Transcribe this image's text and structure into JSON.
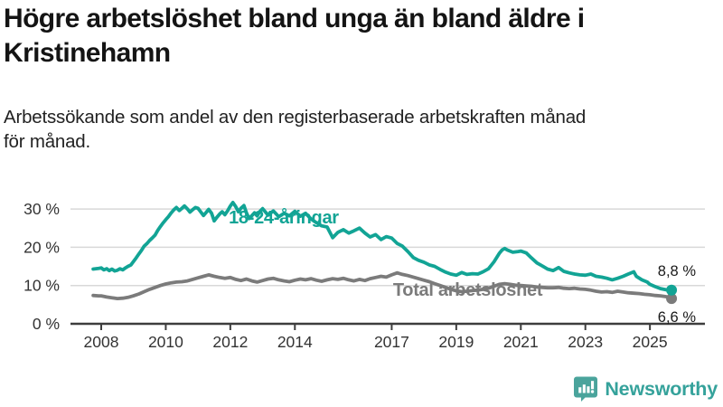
{
  "header": {
    "title_lines": [
      "Högre arbetslöshet bland unga än bland äldre i",
      "Kristinehamn"
    ],
    "subtitle_lines": [
      "Arbetssökande som andel av den registerbaserade arbetskraften månad",
      "för månad."
    ]
  },
  "chart_data": {
    "type": "line",
    "unit": "%",
    "grid": "horizontal",
    "xlim": [
      2007.05,
      2026.1
    ],
    "ylim": [
      0,
      33
    ],
    "x_ticks": [
      "2008",
      "2010",
      "2012",
      "2014",
      "2017",
      "2019",
      "2021",
      "2023",
      "2025"
    ],
    "x_tick_years": [
      2008,
      2010,
      2012,
      2014,
      2017,
      2019,
      2021,
      2023,
      2025
    ],
    "y_ticks": [
      0,
      10,
      20,
      30
    ],
    "colors": {
      "youth": "#12a495",
      "total": "#7b7b7b",
      "grid": "#d8d8d8",
      "axis": "#3d3d3d",
      "tick_label": "#333333",
      "end_label": "#1a1a1a"
    },
    "series": [
      {
        "name": "Total arbetslöshet",
        "color": "#7b7b7b",
        "end_label": "6,6 %",
        "end_value": 6.6,
        "end_label_dy": 26,
        "points": [
          [
            2007.75,
            7.4
          ],
          [
            2007.92,
            7.3
          ],
          [
            2008.0,
            7.3
          ],
          [
            2008.17,
            7.0
          ],
          [
            2008.33,
            6.8
          ],
          [
            2008.5,
            6.6
          ],
          [
            2008.67,
            6.7
          ],
          [
            2008.83,
            6.9
          ],
          [
            2009.0,
            7.3
          ],
          [
            2009.17,
            7.8
          ],
          [
            2009.33,
            8.4
          ],
          [
            2009.5,
            9.0
          ],
          [
            2009.67,
            9.5
          ],
          [
            2009.83,
            10.0
          ],
          [
            2010.0,
            10.4
          ],
          [
            2010.17,
            10.7
          ],
          [
            2010.33,
            10.9
          ],
          [
            2010.5,
            11.0
          ],
          [
            2010.67,
            11.2
          ],
          [
            2010.83,
            11.6
          ],
          [
            2011.0,
            12.0
          ],
          [
            2011.17,
            12.4
          ],
          [
            2011.33,
            12.8
          ],
          [
            2011.5,
            12.4
          ],
          [
            2011.67,
            12.1
          ],
          [
            2011.83,
            11.9
          ],
          [
            2012.0,
            12.1
          ],
          [
            2012.17,
            11.6
          ],
          [
            2012.33,
            11.3
          ],
          [
            2012.5,
            11.7
          ],
          [
            2012.67,
            11.2
          ],
          [
            2012.83,
            10.9
          ],
          [
            2013.0,
            11.3
          ],
          [
            2013.17,
            11.7
          ],
          [
            2013.33,
            11.9
          ],
          [
            2013.5,
            11.5
          ],
          [
            2013.67,
            11.2
          ],
          [
            2013.83,
            11.0
          ],
          [
            2014.0,
            11.4
          ],
          [
            2014.17,
            11.7
          ],
          [
            2014.33,
            11.5
          ],
          [
            2014.5,
            11.8
          ],
          [
            2014.67,
            11.4
          ],
          [
            2014.83,
            11.1
          ],
          [
            2015.0,
            11.5
          ],
          [
            2015.17,
            11.8
          ],
          [
            2015.33,
            11.6
          ],
          [
            2015.5,
            11.9
          ],
          [
            2015.67,
            11.5
          ],
          [
            2015.83,
            11.2
          ],
          [
            2016.0,
            11.6
          ],
          [
            2016.17,
            11.3
          ],
          [
            2016.33,
            11.8
          ],
          [
            2016.5,
            12.1
          ],
          [
            2016.67,
            12.4
          ],
          [
            2016.83,
            12.2
          ],
          [
            2017.0,
            12.8
          ],
          [
            2017.17,
            13.3
          ],
          [
            2017.33,
            12.9
          ],
          [
            2017.5,
            12.6
          ],
          [
            2017.67,
            12.2
          ],
          [
            2017.83,
            11.8
          ],
          [
            2018.0,
            11.4
          ],
          [
            2018.17,
            11.0
          ],
          [
            2018.33,
            10.5
          ],
          [
            2018.5,
            10.0
          ],
          [
            2018.67,
            9.5
          ],
          [
            2018.83,
            9.0
          ],
          [
            2019.0,
            8.6
          ],
          [
            2019.17,
            8.4
          ],
          [
            2019.33,
            8.5
          ],
          [
            2019.5,
            8.7
          ],
          [
            2019.67,
            8.8
          ],
          [
            2019.83,
            9.0
          ],
          [
            2020.0,
            9.3
          ],
          [
            2020.17,
            9.8
          ],
          [
            2020.33,
            10.3
          ],
          [
            2020.5,
            10.5
          ],
          [
            2020.67,
            10.3
          ],
          [
            2020.83,
            10.1
          ],
          [
            2021.0,
            10.0
          ],
          [
            2021.17,
            9.9
          ],
          [
            2021.33,
            9.8
          ],
          [
            2021.5,
            9.6
          ],
          [
            2021.67,
            9.5
          ],
          [
            2021.83,
            9.4
          ],
          [
            2022.0,
            9.4
          ],
          [
            2022.17,
            9.5
          ],
          [
            2022.33,
            9.3
          ],
          [
            2022.5,
            9.2
          ],
          [
            2022.67,
            9.3
          ],
          [
            2022.83,
            9.1
          ],
          [
            2023.0,
            9.0
          ],
          [
            2023.17,
            8.8
          ],
          [
            2023.33,
            8.5
          ],
          [
            2023.5,
            8.3
          ],
          [
            2023.67,
            8.4
          ],
          [
            2023.83,
            8.2
          ],
          [
            2024.0,
            8.5
          ],
          [
            2024.17,
            8.3
          ],
          [
            2024.33,
            8.1
          ],
          [
            2024.5,
            8.0
          ],
          [
            2024.67,
            7.9
          ],
          [
            2024.83,
            7.7
          ],
          [
            2025.0,
            7.6
          ],
          [
            2025.17,
            7.4
          ],
          [
            2025.33,
            7.3
          ],
          [
            2025.5,
            7.1
          ],
          [
            2025.67,
            6.6
          ]
        ]
      },
      {
        "name": "18-24-åringar",
        "color": "#12a495",
        "end_label": "8,8 %",
        "end_value": 8.8,
        "end_label_dy": -16,
        "points": [
          [
            2007.75,
            14.3
          ],
          [
            2007.92,
            14.5
          ],
          [
            2008.0,
            14.6
          ],
          [
            2008.08,
            14.1
          ],
          [
            2008.17,
            14.4
          ],
          [
            2008.25,
            13.9
          ],
          [
            2008.33,
            14.3
          ],
          [
            2008.42,
            13.8
          ],
          [
            2008.5,
            14.0
          ],
          [
            2008.58,
            14.4
          ],
          [
            2008.67,
            14.1
          ],
          [
            2008.75,
            14.6
          ],
          [
            2008.83,
            15.0
          ],
          [
            2008.92,
            15.4
          ],
          [
            2009.0,
            16.3
          ],
          [
            2009.08,
            17.2
          ],
          [
            2009.17,
            18.3
          ],
          [
            2009.25,
            19.2
          ],
          [
            2009.33,
            20.3
          ],
          [
            2009.42,
            21.0
          ],
          [
            2009.5,
            21.8
          ],
          [
            2009.58,
            22.4
          ],
          [
            2009.67,
            23.2
          ],
          [
            2009.75,
            24.4
          ],
          [
            2009.83,
            25.4
          ],
          [
            2009.92,
            26.4
          ],
          [
            2010.0,
            27.2
          ],
          [
            2010.08,
            28.0
          ],
          [
            2010.17,
            29.0
          ],
          [
            2010.25,
            29.8
          ],
          [
            2010.33,
            30.4
          ],
          [
            2010.42,
            29.6
          ],
          [
            2010.5,
            30.2
          ],
          [
            2010.58,
            30.8
          ],
          [
            2010.67,
            30.0
          ],
          [
            2010.75,
            29.2
          ],
          [
            2010.83,
            29.8
          ],
          [
            2010.92,
            30.4
          ],
          [
            2011.0,
            30.2
          ],
          [
            2011.08,
            29.3
          ],
          [
            2011.17,
            28.3
          ],
          [
            2011.25,
            29.1
          ],
          [
            2011.33,
            29.9
          ],
          [
            2011.42,
            28.9
          ],
          [
            2011.5,
            26.9
          ],
          [
            2011.58,
            27.8
          ],
          [
            2011.67,
            28.7
          ],
          [
            2011.75,
            29.3
          ],
          [
            2011.83,
            28.5
          ],
          [
            2011.92,
            29.6
          ],
          [
            2012.0,
            30.8
          ],
          [
            2012.08,
            31.7
          ],
          [
            2012.17,
            30.6
          ],
          [
            2012.25,
            29.3
          ],
          [
            2012.33,
            30.2
          ],
          [
            2012.42,
            30.9
          ],
          [
            2012.5,
            29.0
          ],
          [
            2012.58,
            27.5
          ],
          [
            2012.67,
            28.3
          ],
          [
            2012.75,
            29.0
          ],
          [
            2012.83,
            28.2
          ],
          [
            2012.92,
            29.4
          ],
          [
            2013.0,
            30.1
          ],
          [
            2013.17,
            28.4
          ],
          [
            2013.33,
            29.5
          ],
          [
            2013.5,
            28.0
          ],
          [
            2013.67,
            28.9
          ],
          [
            2013.83,
            28.2
          ],
          [
            2014.0,
            29.4
          ],
          [
            2014.17,
            28.1
          ],
          [
            2014.33,
            28.9
          ],
          [
            2014.5,
            27.4
          ],
          [
            2014.67,
            26.4
          ],
          [
            2014.83,
            25.6
          ],
          [
            2015.0,
            25.3
          ],
          [
            2015.17,
            22.5
          ],
          [
            2015.33,
            23.9
          ],
          [
            2015.5,
            24.6
          ],
          [
            2015.67,
            23.7
          ],
          [
            2015.83,
            24.3
          ],
          [
            2016.0,
            25.0
          ],
          [
            2016.17,
            23.7
          ],
          [
            2016.33,
            22.7
          ],
          [
            2016.5,
            23.3
          ],
          [
            2016.67,
            22.0
          ],
          [
            2016.83,
            22.8
          ],
          [
            2017.0,
            22.4
          ],
          [
            2017.17,
            21.0
          ],
          [
            2017.33,
            20.3
          ],
          [
            2017.5,
            18.9
          ],
          [
            2017.67,
            17.3
          ],
          [
            2017.83,
            16.6
          ],
          [
            2018.0,
            16.1
          ],
          [
            2018.17,
            15.4
          ],
          [
            2018.33,
            15.0
          ],
          [
            2018.5,
            14.2
          ],
          [
            2018.67,
            13.5
          ],
          [
            2018.83,
            13.0
          ],
          [
            2019.0,
            12.7
          ],
          [
            2019.17,
            13.4
          ],
          [
            2019.33,
            12.9
          ],
          [
            2019.5,
            13.1
          ],
          [
            2019.67,
            13.0
          ],
          [
            2019.83,
            13.6
          ],
          [
            2020.0,
            14.4
          ],
          [
            2020.17,
            16.2
          ],
          [
            2020.33,
            18.4
          ],
          [
            2020.42,
            19.3
          ],
          [
            2020.5,
            19.7
          ],
          [
            2020.58,
            19.3
          ],
          [
            2020.75,
            18.7
          ],
          [
            2020.92,
            18.9
          ],
          [
            2021.0,
            19.0
          ],
          [
            2021.17,
            18.5
          ],
          [
            2021.33,
            17.2
          ],
          [
            2021.5,
            15.9
          ],
          [
            2021.67,
            15.1
          ],
          [
            2021.83,
            14.3
          ],
          [
            2022.0,
            13.9
          ],
          [
            2022.17,
            14.7
          ],
          [
            2022.33,
            13.7
          ],
          [
            2022.5,
            13.3
          ],
          [
            2022.67,
            13.0
          ],
          [
            2022.83,
            12.8
          ],
          [
            2023.0,
            12.7
          ],
          [
            2023.17,
            13.0
          ],
          [
            2023.33,
            12.4
          ],
          [
            2023.5,
            12.2
          ],
          [
            2023.67,
            11.9
          ],
          [
            2023.83,
            11.5
          ],
          [
            2024.0,
            11.9
          ],
          [
            2024.17,
            12.4
          ],
          [
            2024.33,
            13.0
          ],
          [
            2024.5,
            13.6
          ],
          [
            2024.58,
            12.4
          ],
          [
            2024.75,
            11.5
          ],
          [
            2024.92,
            10.9
          ],
          [
            2025.0,
            10.3
          ],
          [
            2025.17,
            9.7
          ],
          [
            2025.33,
            9.2
          ],
          [
            2025.5,
            8.9
          ],
          [
            2025.67,
            8.8
          ]
        ]
      }
    ],
    "annotations": [
      {
        "text": "18-24-åringar",
        "x": 2011.95,
        "y": 26.2,
        "color": "#12a495"
      },
      {
        "text": "Total arbetslöshet",
        "x": 2017.04,
        "y": 7.35,
        "color": "#7b7b7b"
      }
    ]
  },
  "footer": {
    "brand": "Newsworthy",
    "brand_color": "#35a29b",
    "logo_icon": "bar-chart-speech-bubble-icon"
  }
}
